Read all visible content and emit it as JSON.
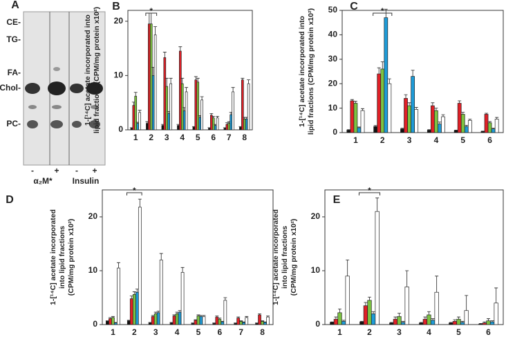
{
  "tlc_panel": {
    "panel_label": "A",
    "bands": [
      "CE-",
      "TG-",
      "FA-",
      "Chol-",
      "PC-"
    ],
    "lane_signs": [
      "-",
      "+",
      "-",
      "+"
    ],
    "groups": [
      "α₂M*",
      "Insulin"
    ]
  },
  "chart_data": [
    {
      "type": "bar",
      "panel_label": "B",
      "ylabel": [
        "1-[¹⁴C] acetate incorporated into",
        "lipid fractions  (CPM/mg protein x10²)"
      ],
      "annotation": "*",
      "categories": [
        "1",
        "2",
        "3",
        "4",
        "5",
        "6",
        "7",
        "8"
      ],
      "ylim": [
        0,
        22
      ],
      "yticks": [
        0,
        10,
        20
      ],
      "series": [
        {
          "color": "#111111",
          "values": [
            0.3,
            1.2,
            0.8,
            0.8,
            0.5,
            0.3,
            0.3,
            0.5
          ],
          "errors": [
            0.1,
            0.3,
            0.2,
            0.2,
            0.1,
            0.1,
            0.1,
            0.1
          ]
        },
        {
          "color": "#e02027",
          "values": [
            4.5,
            19.5,
            13.3,
            14.5,
            9.2,
            2.7,
            1,
            9.2
          ],
          "errors": [
            0.6,
            2,
            1,
            0.8,
            0.6,
            0.3,
            0.3,
            0.3
          ]
        },
        {
          "color": "#7cc242",
          "values": [
            6.2,
            19.5,
            8,
            8.5,
            8.8,
            2.2,
            1.2,
            2
          ],
          "errors": [
            0.7,
            2,
            1.5,
            1,
            0.7,
            0.3,
            0.3,
            0.3
          ]
        },
        {
          "color": "#1e9bd7",
          "values": [
            1.2,
            10,
            3,
            3.5,
            2.3,
            0.8,
            2.8,
            2
          ],
          "errors": [
            0.2,
            1.5,
            0.4,
            0.6,
            0.3,
            0.2,
            0.4,
            0.3
          ]
        },
        {
          "color": "#ffffff",
          "values": [
            3.2,
            17.5,
            8.5,
            7,
            5.5,
            2.2,
            7,
            8.5
          ],
          "errors": [
            0.4,
            1.5,
            1,
            0.8,
            0.6,
            0.3,
            0.8,
            0.7
          ]
        }
      ]
    },
    {
      "type": "bar",
      "panel_label": "C",
      "ylabel": [
        "1-[¹⁴C] acetate incorporated into",
        "lipid fractions  (CPM/mg protein x10²)"
      ],
      "annotation": "*",
      "categories": [
        "1",
        "2",
        "3",
        "4",
        "5",
        "6"
      ],
      "ylim": [
        0,
        50
      ],
      "yticks": [
        0,
        10,
        20,
        30,
        40,
        50
      ],
      "series": [
        {
          "color": "#111111",
          "values": [
            1,
            2.5,
            1.5,
            1,
            0.8,
            0.5
          ],
          "errors": [
            0.2,
            0.4,
            0.3,
            0.2,
            0.2,
            0.1
          ]
        },
        {
          "color": "#e02027",
          "values": [
            13,
            24,
            14,
            11,
            12,
            7.5
          ],
          "errors": [
            0.5,
            2.5,
            1.5,
            1.2,
            1,
            0.4
          ]
        },
        {
          "color": "#7cc242",
          "values": [
            12,
            26,
            11,
            9,
            7.5,
            4
          ],
          "errors": [
            0.8,
            3,
            1.2,
            1,
            0.8,
            0.5
          ]
        },
        {
          "color": "#1e9bd7",
          "values": [
            2,
            47,
            23,
            3.5,
            2.5,
            1.5
          ],
          "errors": [
            0.3,
            3.5,
            2.5,
            0.8,
            0.5,
            0.3
          ]
        },
        {
          "color": "#ffffff",
          "values": [
            9,
            20,
            9.5,
            6.5,
            5,
            5.5
          ],
          "errors": [
            0.8,
            2,
            0.8,
            0.8,
            0.5,
            0.7
          ]
        }
      ]
    },
    {
      "type": "bar",
      "panel_label": "D",
      "ylabel": [
        "1-[¹⁴C] acetate incorporated",
        "into lipid fractions",
        "(CPM/mg protein x10²)"
      ],
      "annotation": "*",
      "categories": [
        "1",
        "2",
        "3",
        "4",
        "5",
        "6",
        "7",
        "8"
      ],
      "ylim": [
        0,
        25
      ],
      "yticks": [
        0,
        10,
        20
      ],
      "series": [
        {
          "color": "#111111",
          "values": [
            0.6,
            0.7,
            0.3,
            0.3,
            0.2,
            0.2,
            0.2,
            0.2
          ],
          "errors": [
            0.1,
            0.1,
            0.1,
            0.1,
            0.1,
            0.1,
            0.1,
            0.1
          ]
        },
        {
          "color": "#e02027",
          "values": [
            1.1,
            4.8,
            1.5,
            1.6,
            0.8,
            1.4,
            1.2,
            1.8
          ],
          "errors": [
            0.2,
            0.5,
            0.2,
            0.2,
            0.1,
            0.2,
            0.2,
            0.2
          ]
        },
        {
          "color": "#7cc242",
          "values": [
            1.3,
            5.6,
            2,
            2,
            1.6,
            1,
            0.6,
            0.6
          ],
          "errors": [
            0.2,
            0.5,
            0.3,
            0.3,
            0.2,
            0.2,
            0.1,
            0.1
          ]
        },
        {
          "color": "#1e9bd7",
          "values": [
            0.3,
            6,
            2.2,
            2.3,
            1.5,
            0.5,
            0.4,
            0.4
          ],
          "errors": [
            0.1,
            0.6,
            0.3,
            0.3,
            0.2,
            0.1,
            0.1,
            0.1
          ]
        },
        {
          "color": "#ffffff",
          "values": [
            10.5,
            21.8,
            12,
            9.7,
            1.5,
            4.5,
            1.3,
            1.4
          ],
          "errors": [
            1,
            1.5,
            1.2,
            0.9,
            0.2,
            0.5,
            0.2,
            0.2
          ]
        }
      ]
    },
    {
      "type": "bar",
      "panel_label": "E",
      "ylabel": [
        "1-[¹⁴C] acetate incorporated",
        "into lipid fractions",
        "(CPM/mg protein x10²)"
      ],
      "annotation": "*",
      "categories": [
        "1",
        "2",
        "3",
        "4",
        "5",
        "6"
      ],
      "ylim": [
        0,
        25
      ],
      "yticks": [
        0,
        10,
        20
      ],
      "series": [
        {
          "color": "#111111",
          "values": [
            0.4,
            0.5,
            0.3,
            0.3,
            0.3,
            0.1
          ],
          "errors": [
            0.1,
            0.1,
            0.1,
            0.1,
            0.1,
            0.1
          ]
        },
        {
          "color": "#e02027",
          "values": [
            1,
            3.5,
            1,
            1,
            0.6,
            0.3
          ],
          "errors": [
            0.4,
            0.6,
            0.4,
            0.4,
            0.3,
            0.2
          ]
        },
        {
          "color": "#7cc242",
          "values": [
            2.2,
            4.5,
            1.5,
            1.8,
            1,
            0.7
          ],
          "errors": [
            0.7,
            0.6,
            0.6,
            0.6,
            0.4,
            0.4
          ]
        },
        {
          "color": "#1e9bd7",
          "values": [
            0.6,
            2,
            0.4,
            0.8,
            0.4,
            0.5
          ],
          "errors": [
            0.2,
            0.4,
            0.2,
            0.3,
            0.2,
            0.2
          ]
        },
        {
          "color": "#ffffff",
          "values": [
            9,
            21,
            7,
            6,
            2.6,
            4
          ],
          "errors": [
            3,
            2.5,
            3,
            3,
            2.8,
            2.8
          ]
        }
      ]
    }
  ]
}
